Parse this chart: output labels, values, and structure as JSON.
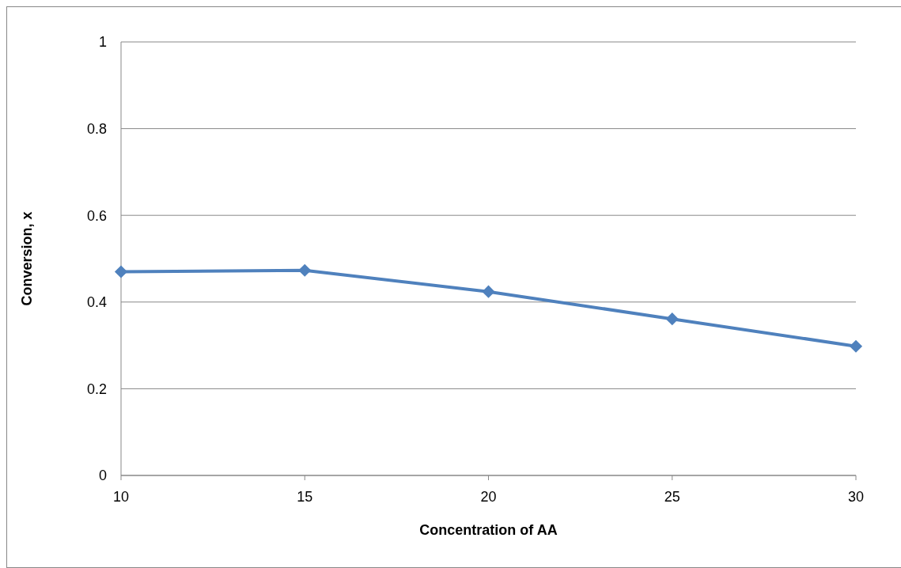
{
  "chart_data": {
    "type": "line",
    "xlabel": "Concentration of AA",
    "ylabel": "Conversion, x",
    "x": [
      10,
      15,
      20,
      25,
      30
    ],
    "series": [
      {
        "color": "#4f81bd",
        "values": [
          0.47,
          0.473,
          0.424,
          0.361,
          0.298
        ]
      }
    ],
    "xlim": [
      10,
      30
    ],
    "xticks": [
      10,
      15,
      20,
      25,
      30
    ],
    "ylim": [
      0,
      1
    ],
    "yticks": [
      0,
      0.2,
      0.4,
      0.6,
      0.8,
      1
    ],
    "grid": "y",
    "marker": "diamond"
  }
}
